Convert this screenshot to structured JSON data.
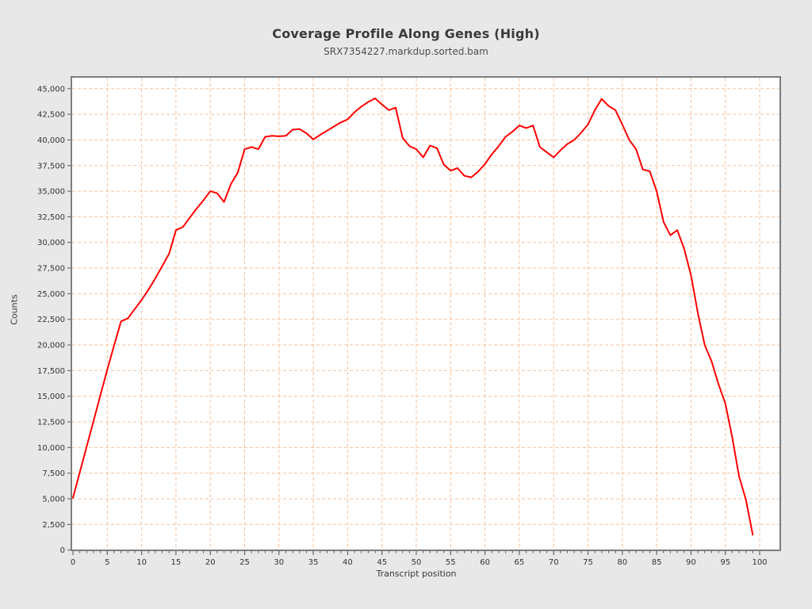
{
  "chart_data": {
    "type": "line",
    "title": "Coverage Profile Along Genes (High)",
    "subtitle": "SRX7354227.markdup.sorted.bam",
    "xlabel": "Transcript position",
    "ylabel": "Counts",
    "x_start": 0,
    "x_step": 1,
    "values": [
      5100,
      7600,
      10100,
      12600,
      15100,
      17600,
      20000,
      22300,
      22600,
      23500,
      24400,
      25400,
      26500,
      27700,
      28900,
      31200,
      31500,
      32400,
      33300,
      34100,
      35000,
      34800,
      33950,
      35700,
      36800,
      39100,
      39300,
      39100,
      40300,
      40400,
      40350,
      40400,
      41000,
      41050,
      40650,
      40050,
      40500,
      40900,
      41300,
      41700,
      42000,
      42700,
      43250,
      43700,
      44050,
      43450,
      42900,
      43150,
      40200,
      39400,
      39100,
      38300,
      39450,
      39200,
      37600,
      37000,
      37250,
      36500,
      36350,
      36900,
      37650,
      38600,
      39400,
      40300,
      40800,
      41400,
      41150,
      41400,
      39300,
      38800,
      38300,
      39000,
      39600,
      40000,
      40700,
      41500,
      42900,
      44000,
      43300,
      42900,
      41500,
      40000,
      39100,
      37100,
      36950,
      35000,
      32000,
      30700,
      31200,
      29400,
      26800,
      23100,
      20000,
      18400,
      16200,
      14300,
      11000,
      7200,
      4900,
      1500
    ],
    "xlim": [
      0,
      103
    ],
    "ylim": [
      0,
      46100
    ],
    "x_ticks": [
      0,
      5,
      10,
      15,
      20,
      25,
      30,
      35,
      40,
      45,
      50,
      55,
      60,
      65,
      70,
      75,
      80,
      85,
      90,
      95,
      100
    ],
    "x_minor_tick_step": 1,
    "y_ticks": [
      0,
      2500,
      5000,
      7500,
      10000,
      12500,
      15000,
      17500,
      20000,
      22500,
      25000,
      27500,
      30000,
      32500,
      35000,
      37500,
      40000,
      42500,
      45000
    ],
    "grid": "dashed",
    "legend_position": "none",
    "colors": {
      "line": "#fe0000",
      "grid": "#f5c29c",
      "plot_background": "#ffffff",
      "page_background": "#e8e8e8",
      "frame": "#7d7d7d",
      "tick": "#555555",
      "tick_label": "#333333",
      "title": "#3a3a3a",
      "subtitle": "#4d4d4d"
    }
  }
}
